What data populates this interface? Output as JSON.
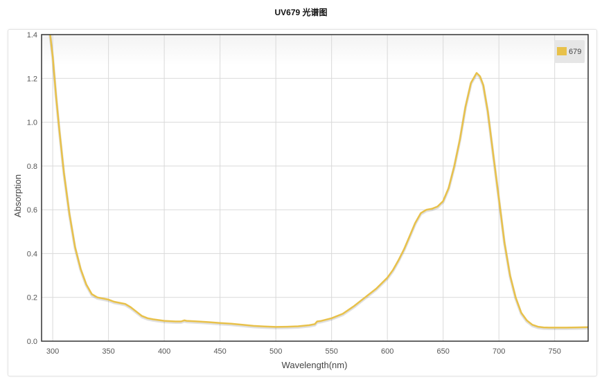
{
  "chart_data": {
    "type": "line",
    "title": "UV679 光谱图",
    "xlabel": "Wavelength(nm)",
    "ylabel": "Absorption",
    "xlim": [
      290,
      780
    ],
    "ylim": [
      0,
      1.4
    ],
    "xticks": [
      300,
      350,
      400,
      450,
      500,
      550,
      600,
      650,
      700,
      750
    ],
    "yticks": [
      0.0,
      0.2,
      0.4,
      0.6,
      0.8,
      1.0,
      1.2,
      1.4
    ],
    "grid": true,
    "legend_position": "top-right",
    "series": [
      {
        "name": "679",
        "color": "#e8c14a",
        "x": [
          297,
          300,
          303,
          306,
          310,
          315,
          320,
          325,
          330,
          335,
          340,
          345,
          350,
          355,
          360,
          365,
          370,
          375,
          380,
          385,
          390,
          400,
          410,
          415,
          418,
          420,
          430,
          440,
          450,
          460,
          470,
          480,
          490,
          500,
          510,
          520,
          530,
          535,
          537,
          540,
          550,
          560,
          570,
          580,
          590,
          600,
          605,
          610,
          615,
          620,
          625,
          630,
          635,
          640,
          645,
          650,
          655,
          660,
          665,
          670,
          675,
          680,
          683,
          686,
          690,
          695,
          700,
          705,
          710,
          715,
          720,
          725,
          730,
          735,
          740,
          745,
          750,
          760,
          770,
          780
        ],
        "y": [
          1.43,
          1.3,
          1.12,
          0.96,
          0.77,
          0.58,
          0.43,
          0.33,
          0.26,
          0.215,
          0.2,
          0.195,
          0.19,
          0.18,
          0.175,
          0.17,
          0.155,
          0.135,
          0.115,
          0.105,
          0.1,
          0.093,
          0.09,
          0.09,
          0.095,
          0.093,
          0.09,
          0.087,
          0.083,
          0.08,
          0.075,
          0.07,
          0.067,
          0.065,
          0.066,
          0.068,
          0.073,
          0.078,
          0.09,
          0.092,
          0.105,
          0.125,
          0.16,
          0.2,
          0.24,
          0.29,
          0.325,
          0.37,
          0.42,
          0.48,
          0.54,
          0.585,
          0.6,
          0.605,
          0.615,
          0.64,
          0.7,
          0.8,
          0.92,
          1.07,
          1.18,
          1.225,
          1.21,
          1.17,
          1.05,
          0.85,
          0.65,
          0.45,
          0.3,
          0.2,
          0.13,
          0.095,
          0.075,
          0.066,
          0.063,
          0.062,
          0.062,
          0.062,
          0.063,
          0.064
        ]
      }
    ]
  }
}
